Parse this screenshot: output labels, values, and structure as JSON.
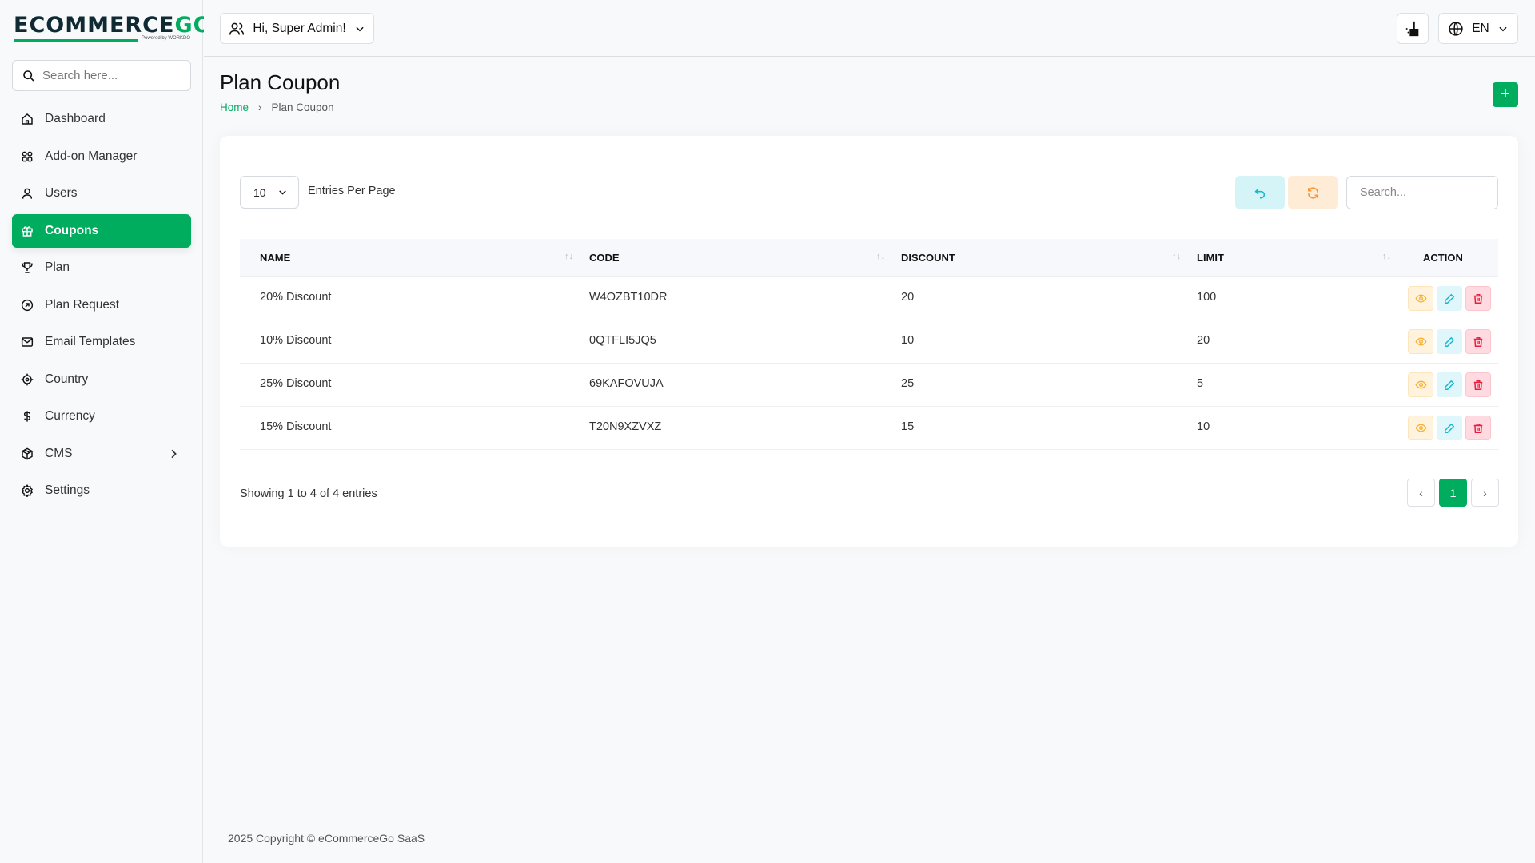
{
  "brand": {
    "logo_main": "ECOMMERCE",
    "logo_accent": "GO",
    "powered": "Powered by WORKDO",
    "accent": "#00ad5f"
  },
  "sidebar": {
    "search_placeholder": "Search here...",
    "items": [
      {
        "label": "Dashboard",
        "icon": "home-icon"
      },
      {
        "label": "Add-on Manager",
        "icon": "grid-icon"
      },
      {
        "label": "Users",
        "icon": "user-icon"
      },
      {
        "label": "Coupons",
        "icon": "gift-icon",
        "active": true
      },
      {
        "label": "Plan",
        "icon": "trophy-icon"
      },
      {
        "label": "Plan Request",
        "icon": "arrow-circle-icon"
      },
      {
        "label": "Email Templates",
        "icon": "mail-icon"
      },
      {
        "label": "Country",
        "icon": "target-icon"
      },
      {
        "label": "Currency",
        "icon": "dollar-icon"
      },
      {
        "label": "CMS",
        "icon": "box-icon",
        "has_children": true
      },
      {
        "label": "Settings",
        "icon": "gear-icon"
      }
    ]
  },
  "header": {
    "greeting": "Hi, Super Admin!",
    "language": "EN"
  },
  "page": {
    "title": "Plan Coupon",
    "breadcrumb": [
      "Home",
      "Plan Coupon"
    ]
  },
  "table_controls": {
    "entries_value": "10",
    "entries_label": "Entries Per Page",
    "search_placeholder": "Search..."
  },
  "table": {
    "columns": [
      "NAME",
      "CODE",
      "DISCOUNT",
      "LIMIT",
      "ACTION"
    ],
    "rows": [
      {
        "name": "20% Discount",
        "code": "W4OZBT10DR",
        "discount": "20",
        "limit": "100"
      },
      {
        "name": "10% Discount",
        "code": "0QTFLI5JQ5",
        "discount": "10",
        "limit": "20"
      },
      {
        "name": "25% Discount",
        "code": "69KAFOVUJA",
        "discount": "25",
        "limit": "5"
      },
      {
        "name": "15% Discount",
        "code": "T20N9XZVXZ",
        "discount": "15",
        "limit": "10"
      }
    ]
  },
  "pagination": {
    "info": "Showing 1 to 4 of 4 entries",
    "prev": "‹",
    "current": "1",
    "next": "›"
  },
  "footer": {
    "copyright": "2025 Copyright © eCommerceGo SaaS"
  }
}
